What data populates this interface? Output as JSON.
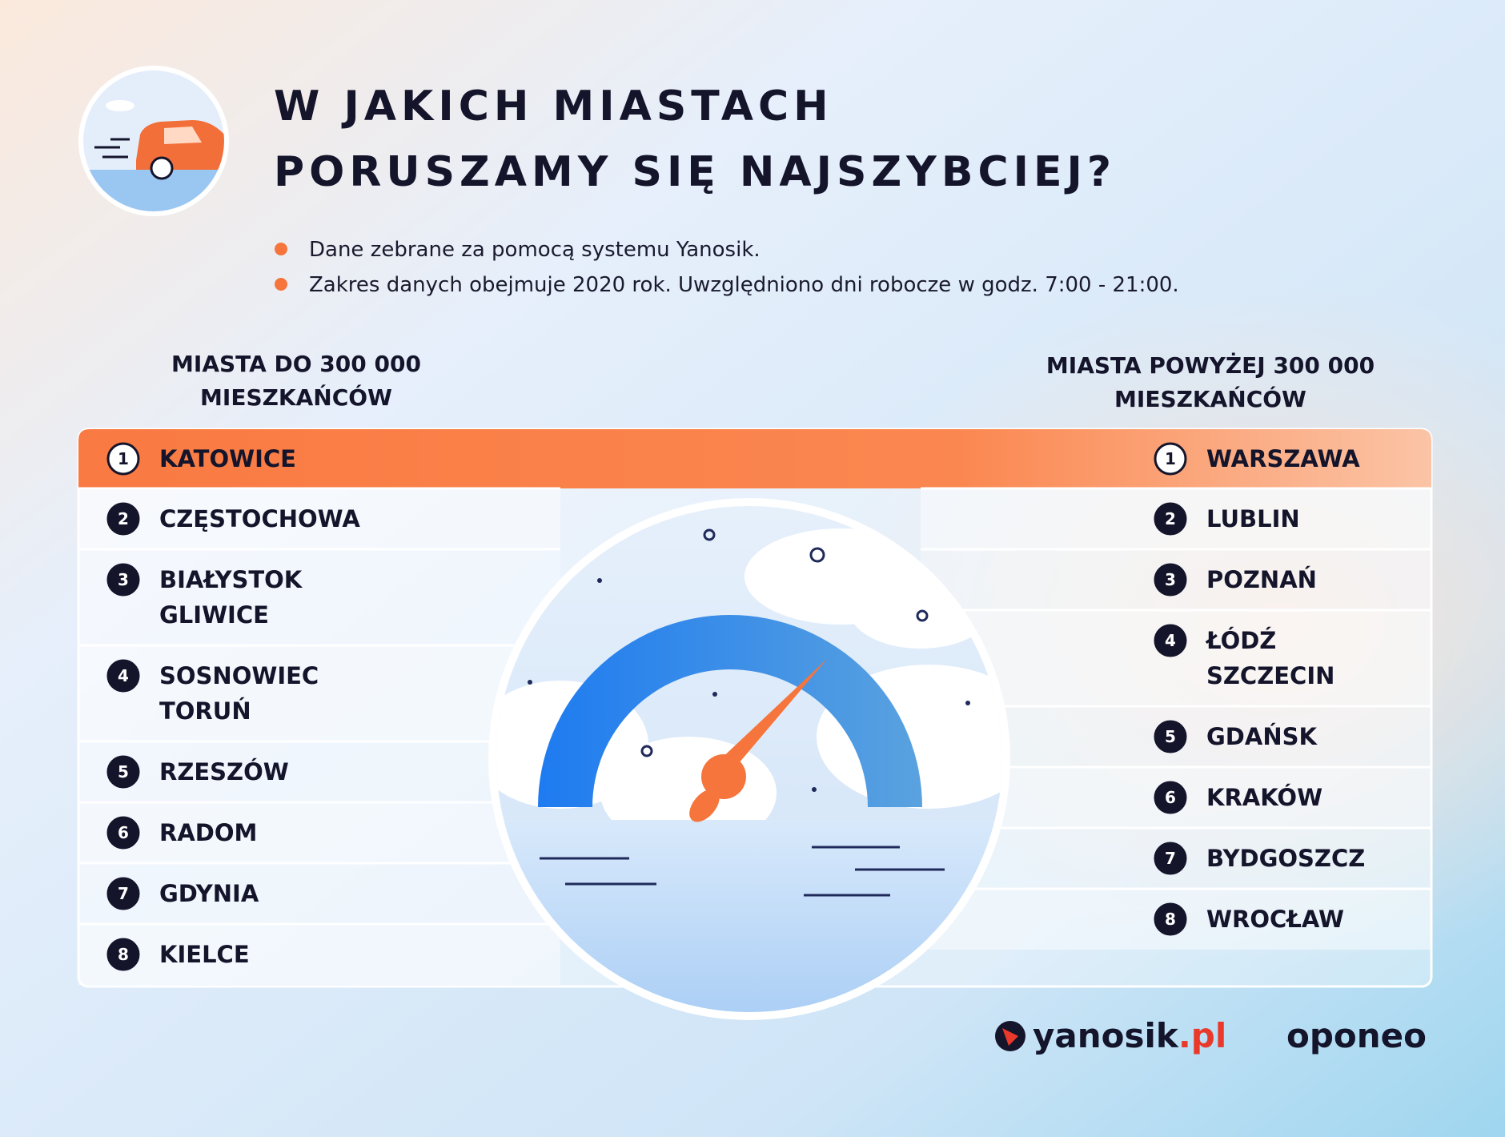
{
  "header": {
    "title": [
      "W JAKICH MIASTACH",
      "PORUSZAMY SIĘ NAJSZYBCIEJ?"
    ],
    "notes": [
      "Dane zebrane za pomocą systemu Yanosik.",
      "Zakres danych obejmuje 2020 rok. Uwzględniono dni robocze w godz. 7:00 - 21:00."
    ]
  },
  "left": {
    "heading": [
      "MIASTA DO 300 000",
      "MIESZKAŃCÓW"
    ],
    "rows": [
      {
        "rank": 1,
        "cities": [
          "KATOWICE"
        ]
      },
      {
        "rank": 2,
        "cities": [
          "CZĘSTOCHOWA"
        ]
      },
      {
        "rank": 3,
        "cities": [
          "BIAŁYSTOK",
          "GLIWICE"
        ]
      },
      {
        "rank": 4,
        "cities": [
          "SOSNOWIEC",
          "TORUŃ"
        ]
      },
      {
        "rank": 5,
        "cities": [
          "RZESZÓW"
        ]
      },
      {
        "rank": 6,
        "cities": [
          "RADOM"
        ]
      },
      {
        "rank": 7,
        "cities": [
          "GDYNIA"
        ]
      },
      {
        "rank": 8,
        "cities": [
          "KIELCE"
        ]
      }
    ]
  },
  "right": {
    "heading": [
      "MIASTA POWYŻEJ 300 000",
      "MIESZKAŃCÓW"
    ],
    "rows": [
      {
        "rank": 1,
        "cities": [
          "WARSZAWA"
        ]
      },
      {
        "rank": 2,
        "cities": [
          "LUBLIN"
        ]
      },
      {
        "rank": 3,
        "cities": [
          "POZNAŃ"
        ]
      },
      {
        "rank": 4,
        "cities": [
          "ŁÓDŹ",
          "SZCZECIN"
        ]
      },
      {
        "rank": 5,
        "cities": [
          "GDAŃSK"
        ]
      },
      {
        "rank": 6,
        "cities": [
          "KRAKÓW"
        ]
      },
      {
        "rank": 7,
        "cities": [
          "BYDGOSZCZ"
        ]
      },
      {
        "rank": 8,
        "cities": [
          "WROCŁAW"
        ]
      }
    ]
  },
  "logos": {
    "yanosik": [
      "yanosik",
      ".pl"
    ],
    "oponeo": "oponeo"
  }
}
